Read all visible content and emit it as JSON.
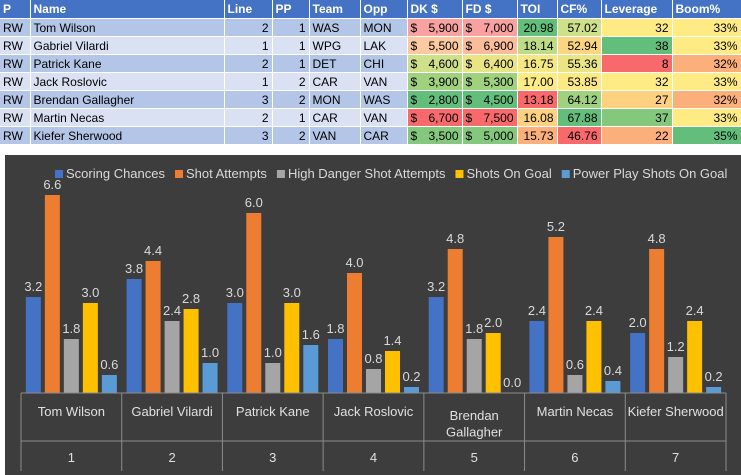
{
  "table": {
    "columns": [
      "P",
      "Name",
      "Line",
      "PP",
      "Team",
      "Opp",
      "DK $",
      "FD $",
      "TOI",
      "CF%",
      "Leverage",
      "Boom%"
    ],
    "rows": [
      {
        "pos": "RW",
        "name": "Tom Wilson",
        "line": "2",
        "pp": "1",
        "team": "WAS",
        "opp": "MON",
        "dk": "5,900",
        "fd": "7,000",
        "toi": "20.98",
        "cf": "57.02",
        "leverage": "32",
        "boom": "33%",
        "colors": {
          "dk": "#f8a1a1",
          "fd": "#f8a1a1",
          "toi": "#63be7b",
          "cf": "#cfe08a",
          "leverage": "#ffeb84",
          "boom": "#ffeb84"
        }
      },
      {
        "pos": "RW",
        "name": "Gabriel Vilardi",
        "line": "1",
        "pp": "1",
        "team": "WPG",
        "opp": "LAK",
        "dk": "5,500",
        "fd": "6,900",
        "toi": "18.14",
        "cf": "52.94",
        "leverage": "38",
        "boom": "33%",
        "colors": {
          "dk": "#fcc9a0",
          "fd": "#fcbc9c",
          "toi": "#bedb85",
          "cf": "#fcd582",
          "leverage": "#63be7b",
          "boom": "#ffeb84"
        }
      },
      {
        "pos": "RW",
        "name": "Patrick Kane",
        "line": "2",
        "pp": "1",
        "team": "DET",
        "opp": "CHI",
        "dk": "4,600",
        "fd": "6,400",
        "toi": "16.75",
        "cf": "55.36",
        "leverage": "8",
        "boom": "32%",
        "colors": {
          "dk": "#cfe08a",
          "fd": "#e9e585",
          "toi": "#f5e884",
          "cf": "#e9e585",
          "leverage": "#f8696b",
          "boom": "#fbb07b"
        }
      },
      {
        "pos": "RW",
        "name": "Jack Roslovic",
        "line": "1",
        "pp": "2",
        "team": "CAR",
        "opp": "VAN",
        "dk": "3,900",
        "fd": "5,300",
        "toi": "17.00",
        "cf": "53.85",
        "leverage": "32",
        "boom": "33%",
        "colors": {
          "dk": "#9fd17e",
          "fd": "#9fd17e",
          "toi": "#ffeb84",
          "cf": "#fde983",
          "leverage": "#ffeb84",
          "boom": "#ffeb84"
        }
      },
      {
        "pos": "RW",
        "name": "Brendan Gallagher",
        "line": "3",
        "pp": "2",
        "team": "MON",
        "opp": "WAS",
        "dk": "2,800",
        "fd": "4,500",
        "toi": "13.18",
        "cf": "64.12",
        "leverage": "27",
        "boom": "32%",
        "colors": {
          "dk": "#63be7b",
          "fd": "#63be7b",
          "toi": "#f8696b",
          "cf": "#9fd17e",
          "leverage": "#fdd17f",
          "boom": "#fbb07b"
        }
      },
      {
        "pos": "RW",
        "name": "Martin Necas",
        "line": "2",
        "pp": "1",
        "team": "CAR",
        "opp": "VAN",
        "dk": "6,700",
        "fd": "7,500",
        "toi": "16.08",
        "cf": "67.88",
        "leverage": "37",
        "boom": "33%",
        "colors": {
          "dk": "#f8696b",
          "fd": "#f8696b",
          "toi": "#fdd17f",
          "cf": "#63be7b",
          "leverage": "#84c87d",
          "boom": "#ffeb84"
        }
      },
      {
        "pos": "RW",
        "name": "Kiefer Sherwood",
        "line": "3",
        "pp": "2",
        "team": "VAN",
        "opp": "CAR",
        "dk": "3,500",
        "fd": "5,000",
        "toi": "15.73",
        "cf": "46.76",
        "leverage": "22",
        "boom": "35%",
        "colors": {
          "dk": "#84c87d",
          "fd": "#84c87d",
          "toi": "#fbb07b",
          "cf": "#f8696b",
          "leverage": "#fbb07b",
          "boom": "#63be7b"
        }
      }
    ],
    "currency": "$"
  },
  "chart_data": {
    "type": "bar",
    "title": "",
    "xlabel": "",
    "ylabel": "",
    "ylim": [
      0,
      7
    ],
    "grid": false,
    "legend_position": "top",
    "categories": [
      {
        "name": "Tom Wilson",
        "index": "1"
      },
      {
        "name": "Gabriel Vilardi",
        "index": "2"
      },
      {
        "name": "Patrick Kane",
        "index": "3"
      },
      {
        "name": "Jack Roslovic",
        "index": "4"
      },
      {
        "name": "Brendan Gallagher",
        "index": "5"
      },
      {
        "name": "Martin Necas",
        "index": "6"
      },
      {
        "name": "Kiefer Sherwood",
        "index": "7"
      }
    ],
    "series": [
      {
        "name": "Scoring Chances",
        "color": "#4472c4",
        "values": [
          3.2,
          3.8,
          3.0,
          1.8,
          3.2,
          2.4,
          2.0
        ]
      },
      {
        "name": "Shot Attempts",
        "color": "#ed7d31",
        "values": [
          6.6,
          4.4,
          6.0,
          4.0,
          4.8,
          5.2,
          4.8
        ]
      },
      {
        "name": "High Danger Shot Attempts",
        "color": "#a5a5a5",
        "values": [
          1.8,
          2.4,
          1.0,
          0.8,
          1.8,
          0.6,
          1.2
        ]
      },
      {
        "name": "Shots On Goal",
        "color": "#ffc000",
        "values": [
          3.0,
          2.8,
          3.0,
          1.4,
          2.0,
          2.4,
          2.4
        ]
      },
      {
        "name": "Power Play Shots On Goal",
        "color": "#5b9bd5",
        "values": [
          0.6,
          1.0,
          1.6,
          0.2,
          0.0,
          0.4,
          0.2
        ]
      }
    ]
  }
}
